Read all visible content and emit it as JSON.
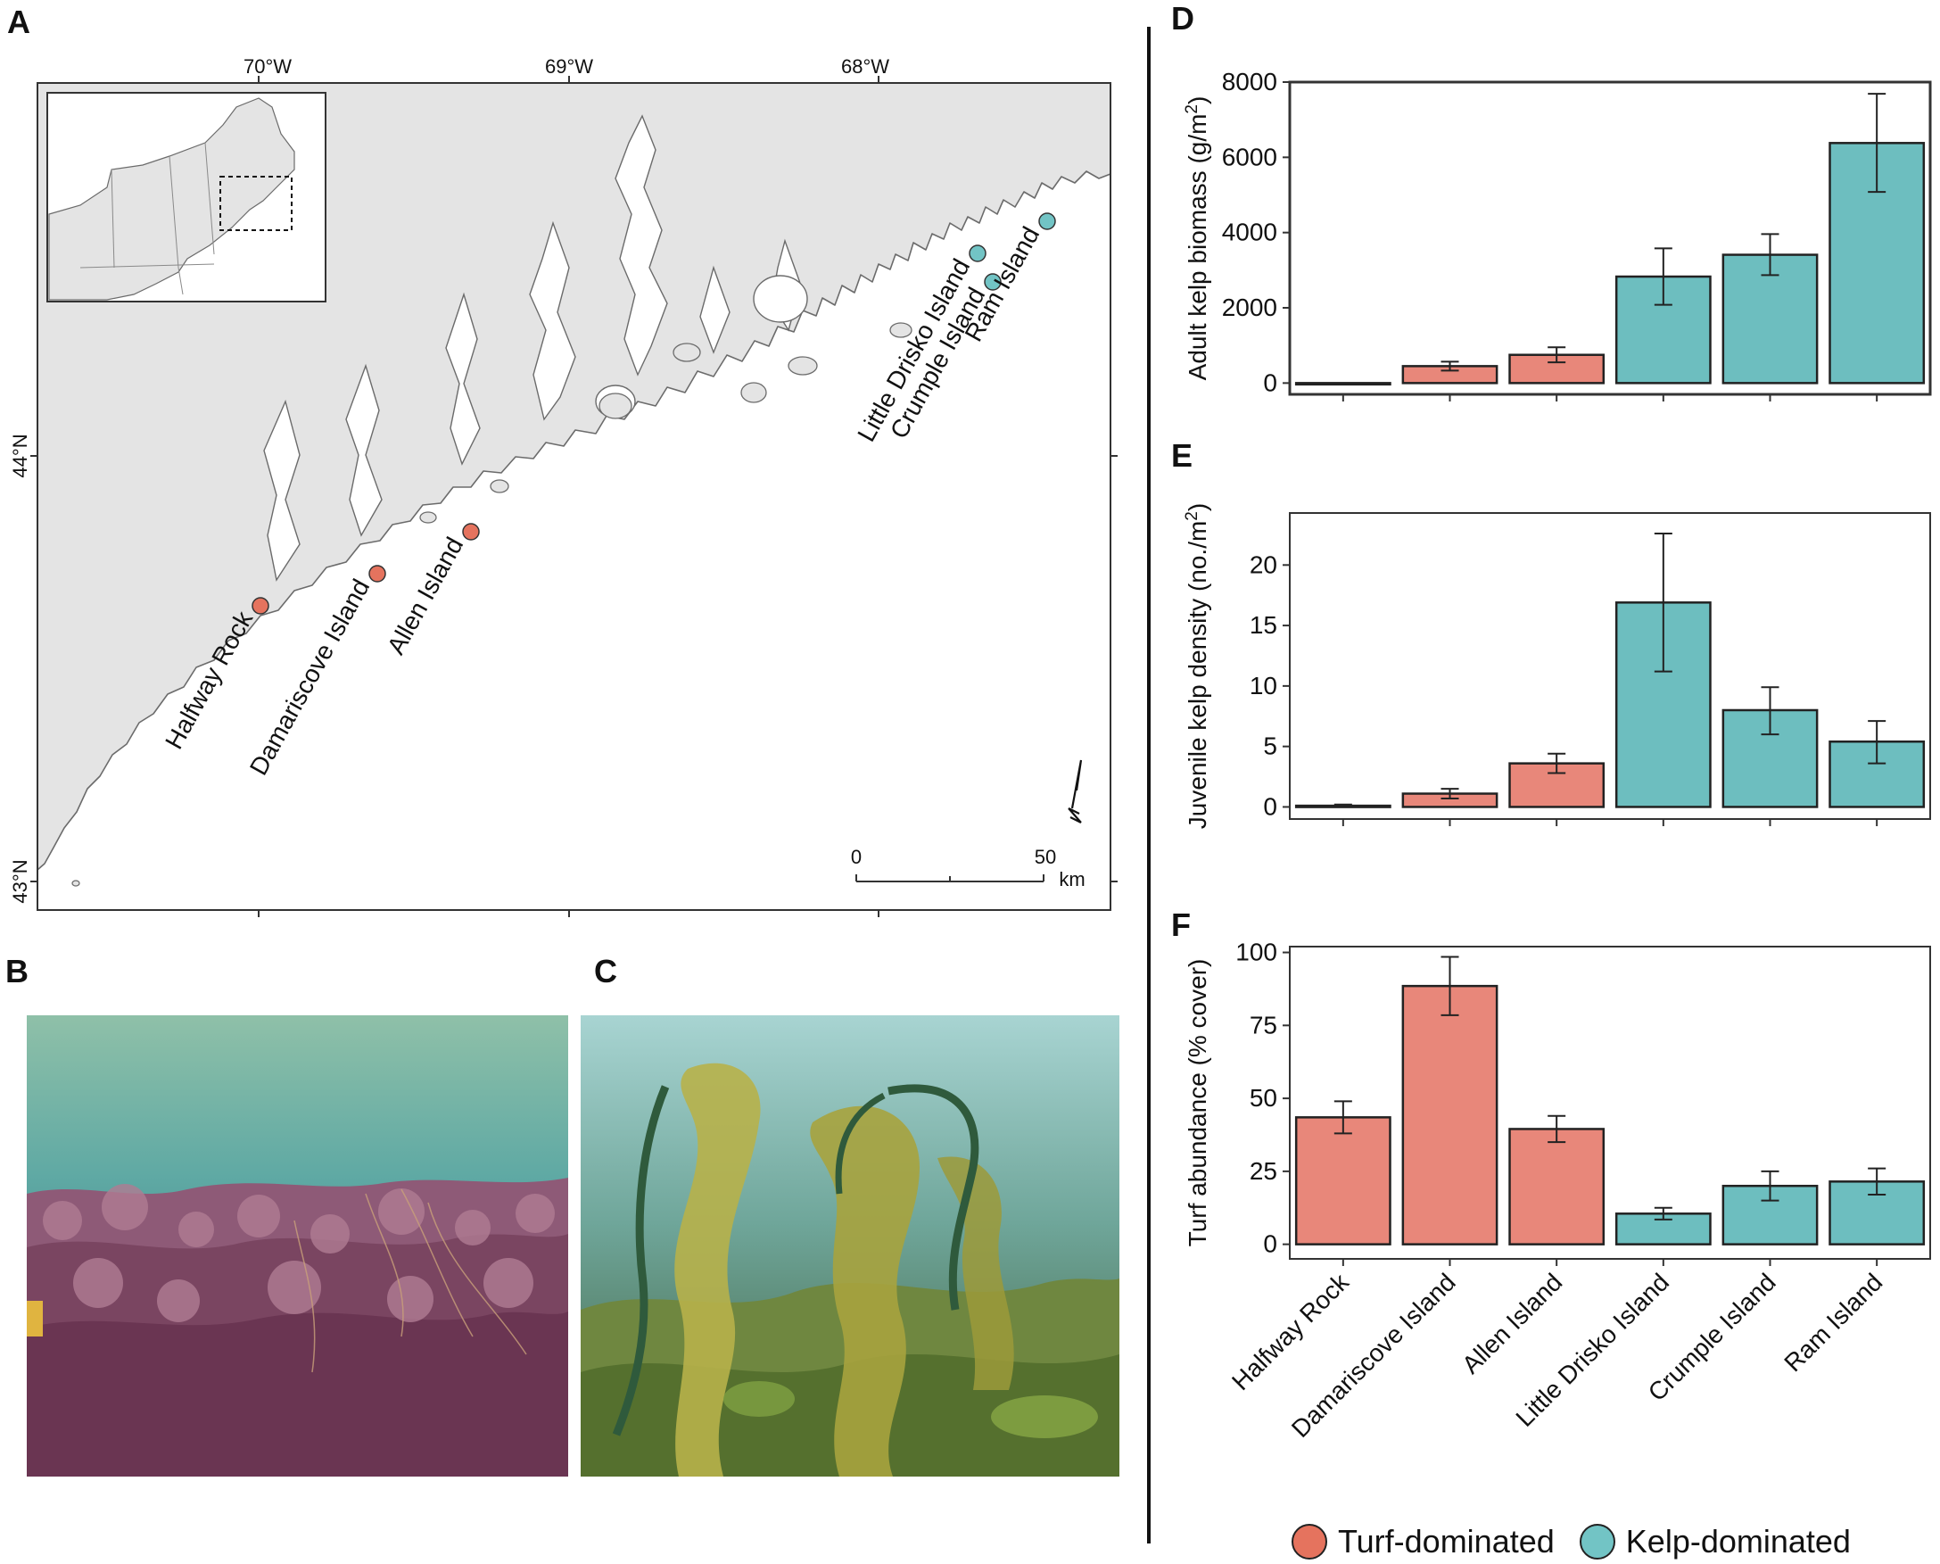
{
  "panels": {
    "a": "A",
    "b": "B",
    "c": "C",
    "d": "D",
    "e": "E",
    "f": "F"
  },
  "colors": {
    "turf": "#E8877A",
    "kelp": "#6DBEBF",
    "turf_marker": "#E5735E",
    "kelp_marker": "#72C4C5",
    "land": "#E4E4E4",
    "sea": "#FFFFFF"
  },
  "map": {
    "lon_labels": [
      "70°W",
      "69°W",
      "68°W"
    ],
    "lat_labels": [
      "44°N",
      "43°N"
    ],
    "sites": [
      {
        "name": "Halfway Rock",
        "type": "turf"
      },
      {
        "name": "Damariscove Island",
        "type": "turf"
      },
      {
        "name": "Allen Island",
        "type": "turf"
      },
      {
        "name": "Little Drisko Island",
        "type": "kelp"
      },
      {
        "name": "Crumple Island",
        "type": "kelp"
      },
      {
        "name": "Ram Island",
        "type": "kelp"
      }
    ],
    "scale": {
      "start": "0",
      "end": "50",
      "unit": "km"
    },
    "north_icon": "north-arrow-icon"
  },
  "photos": [
    {
      "panel": "B",
      "subject": "turf-dominated reef photo"
    },
    {
      "panel": "C",
      "subject": "kelp-dominated reef photo"
    }
  ],
  "chart_data": [
    {
      "panel": "D",
      "type": "bar",
      "ylabel": "Adult kelp biomass (g/m²)",
      "ylabel_main": "Adult kelp biomass (g/m",
      "ylabel_sup": "2",
      "ylabel_end": ")",
      "categories": [
        "Halfway Rock",
        "Damariscove Island",
        "Allen Island",
        "Little Drisko Island",
        "Crumple Island",
        "Ram Island"
      ],
      "values": [
        0,
        450,
        750,
        2830,
        3410,
        6380
      ],
      "err_low": [
        0,
        330,
        550,
        2080,
        2870,
        5080
      ],
      "err_high": [
        0,
        570,
        950,
        3580,
        3960,
        7690
      ],
      "bar_types": [
        "turf",
        "turf",
        "turf",
        "kelp",
        "kelp",
        "kelp"
      ],
      "yticks": [
        0,
        2000,
        4000,
        6000,
        8000
      ],
      "ylim": [
        -300,
        8000
      ]
    },
    {
      "panel": "E",
      "type": "bar",
      "ylabel": "Juvenile kelp density (no./m²)",
      "ylabel_main": "Juvenile kelp density (no./m",
      "ylabel_sup": "2",
      "ylabel_end": ")",
      "categories": [
        "Halfway Rock",
        "Damariscove Island",
        "Allen Island",
        "Little Drisko Island",
        "Crumple Island",
        "Ram Island"
      ],
      "values": [
        0.1,
        1.1,
        3.6,
        16.9,
        8.0,
        5.4
      ],
      "err_low": [
        0.05,
        0.7,
        2.8,
        11.2,
        6.0,
        3.6
      ],
      "err_high": [
        0.2,
        1.5,
        4.4,
        22.6,
        9.9,
        7.1
      ],
      "bar_types": [
        "turf",
        "turf",
        "turf",
        "kelp",
        "kelp",
        "kelp"
      ],
      "yticks": [
        0,
        5,
        10,
        15,
        20
      ],
      "ylim": [
        -1,
        24.3
      ]
    },
    {
      "panel": "F",
      "type": "bar",
      "ylabel": "Turf abundance (% cover)",
      "categories": [
        "Halfway Rock",
        "Damariscove Island",
        "Allen Island",
        "Little Drisko Island",
        "Crumple Island",
        "Ram Island"
      ],
      "values": [
        43.5,
        88.5,
        39.5,
        10.5,
        20,
        21.5
      ],
      "err_low": [
        38,
        78.5,
        35,
        8.5,
        15,
        17
      ],
      "err_high": [
        49,
        98.5,
        44,
        12.5,
        25,
        26
      ],
      "bar_types": [
        "turf",
        "turf",
        "turf",
        "kelp",
        "kelp",
        "kelp"
      ],
      "yticks": [
        0,
        25,
        50,
        75,
        100
      ],
      "ylim": [
        -5,
        102
      ]
    }
  ],
  "legend": [
    {
      "label": "Turf-dominated",
      "type": "turf"
    },
    {
      "label": "Kelp-dominated",
      "type": "kelp"
    }
  ]
}
